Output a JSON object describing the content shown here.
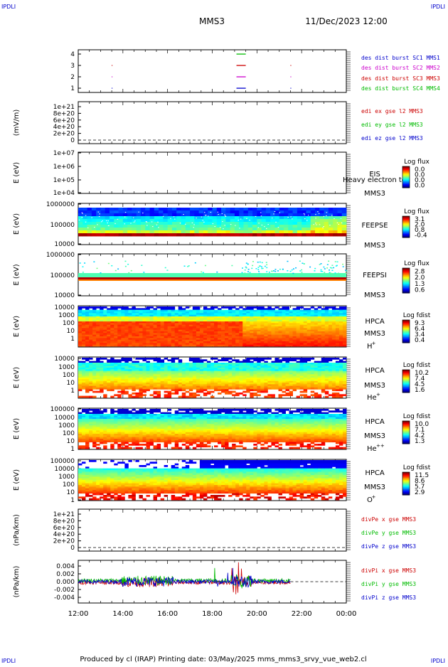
{
  "corner_labels": {
    "tl": "IPDLI",
    "tr": "IPDLI",
    "bl": "IPDLI",
    "br": "IPDLI"
  },
  "header": {
    "spacecraft": "MMS3",
    "datetime": "11/Dec/2023 12:00"
  },
  "footer": {
    "text": "Produced by cl (IRAP)   Printing date: 03/May/2025   mms_mms3_srvy_vue_web2.cl"
  },
  "time_axis": {
    "ticks": [
      "12:00",
      "14:00",
      "16:00",
      "18:00",
      "20:00",
      "22:00",
      "00:00"
    ]
  },
  "panels": {
    "des": {
      "ylabels": [
        "4",
        "3",
        "2",
        "1"
      ],
      "legend": [
        {
          "text": "des dist burst SC1 MMS1",
          "color": "#0000cc"
        },
        {
          "text": "des dist burst SC2 MMS2",
          "color": "#cc00cc"
        },
        {
          "text": "des dist burst SC3 MMS3",
          "color": "#cc0000"
        },
        {
          "text": "des dist burst SC4 MMS4",
          "color": "#00bb00"
        }
      ]
    },
    "edi": {
      "ylabel": "(mV/m)",
      "ylabels": [
        "1e+21",
        "8e+20",
        "6e+20",
        "4e+20",
        "2e+20",
        "0"
      ],
      "legend": [
        {
          "text": "edi ex gse l2 MMS3",
          "color": "#cc0000"
        },
        {
          "text": "edi ey gse l2 MMS3",
          "color": "#00bb00"
        },
        {
          "text": "edi ez gse l2 MMS3",
          "color": "#0000cc"
        }
      ]
    },
    "eis": {
      "ylabel": "E (eV)",
      "ylabels": [
        "1e+07",
        "1e+06",
        "1e+05",
        "1e+04"
      ],
      "name": "EIS",
      "overlay": "Heavy electron to",
      "sc": "MMS3",
      "cb_title": "Log flux",
      "cb_ticks": [
        "0.0",
        "0.0",
        "0.0",
        "0.0"
      ]
    },
    "feepse": {
      "ylabel": "E (eV)",
      "ylabels": [
        "1000000",
        "100000",
        "10000"
      ],
      "name": "FEEPSE",
      "sc": "MMS3",
      "cb_title": "Log flux",
      "cb_ticks": [
        "3.1",
        "2.0",
        "0.8",
        "-0.4"
      ]
    },
    "feepsi": {
      "ylabel": "E (eV)",
      "ylabels": [
        "1000000",
        "100000",
        "10000"
      ],
      "name": "FEEPSI",
      "sc": "MMS3",
      "cb_title": "Log flux",
      "cb_ticks": [
        "2.8",
        "2.0",
        "1.3",
        "0.6"
      ]
    },
    "hpca_h": {
      "ylabel": "E (eV)",
      "ylabels": [
        "10000",
        "1000",
        "100",
        "10",
        "1"
      ],
      "name": "HPCA",
      "sc": "MMS3",
      "species": "H",
      "charge": "+",
      "cb_title": "Log fdist",
      "cb_ticks": [
        "9.3",
        "6.4",
        "3.4",
        "0.4"
      ]
    },
    "hpca_he": {
      "ylabel": "E (eV)",
      "ylabels": [
        "10000",
        "1000",
        "100",
        "10",
        "1"
      ],
      "name": "HPCA",
      "sc": "MMS3",
      "species": "He",
      "charge": "+",
      "cb_title": "Log fdist",
      "cb_ticks": [
        "10.2",
        "7.4",
        "4.5",
        "1.6"
      ]
    },
    "hpca_hepp": {
      "ylabel": "E (eV)",
      "ylabels": [
        "100000",
        "10000",
        "1000",
        "100",
        "10",
        "1"
      ],
      "name": "HPCA",
      "sc": "MMS3",
      "species": "He",
      "charge": "++",
      "cb_title": "Log fdist",
      "cb_ticks": [
        "10.0",
        "7.1",
        "4.2",
        "1.3"
      ]
    },
    "hpca_o": {
      "ylabel": "E (eV)",
      "ylabels": [
        "100000",
        "10000",
        "1000",
        "100",
        "10",
        "1"
      ],
      "name": "HPCA",
      "sc": "MMS3",
      "species": "O",
      "charge": "+",
      "cb_title": "Log fdist",
      "cb_ticks": [
        "11.5",
        "8.6",
        "5.7",
        "2.9"
      ]
    },
    "divpe": {
      "ylabel": "(nPa/km)",
      "ylabels": [
        "1e+21",
        "8e+20",
        "6e+20",
        "4e+20",
        "2e+20",
        "0"
      ],
      "legend": [
        {
          "text": "divPe x gse MMS3",
          "color": "#cc0000"
        },
        {
          "text": "divPe y gse MMS3",
          "color": "#00bb00"
        },
        {
          "text": "divPe z gse MMS3",
          "color": "#0000cc"
        }
      ]
    },
    "divpi": {
      "ylabel": "(nPa/km)",
      "ylabels": [
        "0.004",
        "0.002",
        "0.000",
        "-0.002",
        "-0.004"
      ],
      "legend": [
        {
          "text": "divPi x gse MMS3",
          "color": "#cc0000"
        },
        {
          "text": "divPi y gse MMS3",
          "color": "#00bb00"
        },
        {
          "text": "divPi z gse MMS3",
          "color": "#0000cc"
        }
      ]
    }
  },
  "chart_data": [
    {
      "type": "scatter",
      "name": "des",
      "x_range": [
        "12:00",
        "00:00"
      ],
      "series": [
        {
          "name": "des dist burst SC1 MMS1",
          "y": 1,
          "color": "#0000cc",
          "intervals": [
            [
              "13:30",
              "13:31"
            ],
            [
              "19:05",
              "19:30"
            ],
            [
              "21:30",
              "21:31"
            ]
          ]
        },
        {
          "name": "des dist burst SC2 MMS2",
          "y": 2,
          "color": "#cc00cc",
          "intervals": [
            [
              "13:30",
              "13:31"
            ],
            [
              "19:05",
              "19:30"
            ],
            [
              "21:30",
              "21:31"
            ]
          ]
        },
        {
          "name": "des dist burst SC3 MMS3",
          "y": 3,
          "color": "#cc0000",
          "intervals": [
            [
              "13:30",
              "13:31"
            ],
            [
              "19:05",
              "19:30"
            ],
            [
              "21:30",
              "21:31"
            ]
          ]
        },
        {
          "name": "des dist burst SC4 MMS4",
          "y": 4,
          "color": "#00bb00",
          "intervals": [
            [
              "19:05",
              "19:30"
            ]
          ]
        }
      ]
    },
    {
      "type": "line",
      "name": "edi",
      "ylim": [
        0,
        1e+21
      ],
      "series": [
        {
          "name": "edi ex gse l2 MMS3",
          "y": 0
        },
        {
          "name": "edi ey gse l2 MMS3",
          "y": 0
        },
        {
          "name": "edi ez gse l2 MMS3",
          "y": 0
        }
      ]
    },
    {
      "type": "heatmap",
      "name": "FEEPSE",
      "y_scale": "log",
      "ylim": [
        10000,
        1000000
      ],
      "clim": [
        -0.4,
        3.1
      ],
      "band_high_flux": [
        40000,
        50000
      ]
    },
    {
      "type": "heatmap",
      "name": "FEEPSI",
      "y_scale": "log",
      "ylim": [
        10000,
        1000000
      ],
      "clim": [
        0.6,
        2.8
      ],
      "band_high_flux": [
        55000,
        70000
      ]
    },
    {
      "type": "heatmap",
      "name": "HPCA H+",
      "y_scale": "log",
      "ylim": [
        1,
        40000
      ],
      "clim": [
        0.4,
        9.3
      ]
    },
    {
      "type": "heatmap",
      "name": "HPCA He+",
      "y_scale": "log",
      "ylim": [
        1,
        40000
      ],
      "clim": [
        1.6,
        10.2
      ]
    },
    {
      "type": "heatmap",
      "name": "HPCA He++",
      "y_scale": "log",
      "ylim": [
        1,
        100000
      ],
      "clim": [
        1.3,
        10.0
      ]
    },
    {
      "type": "heatmap",
      "name": "HPCA O+",
      "y_scale": "log",
      "ylim": [
        1,
        100000
      ],
      "clim": [
        2.9,
        11.5
      ]
    },
    {
      "type": "line",
      "name": "divPi",
      "ylim": [
        -0.005,
        0.005
      ],
      "x_range": [
        "12:00",
        "21:30"
      ],
      "series": [
        {
          "name": "divPi x gse MMS3",
          "mean": 0.0003
        },
        {
          "name": "divPi y gse MMS3",
          "mean": -0.0002
        },
        {
          "name": "divPi z gse MMS3",
          "mean": 0.0
        }
      ]
    }
  ]
}
